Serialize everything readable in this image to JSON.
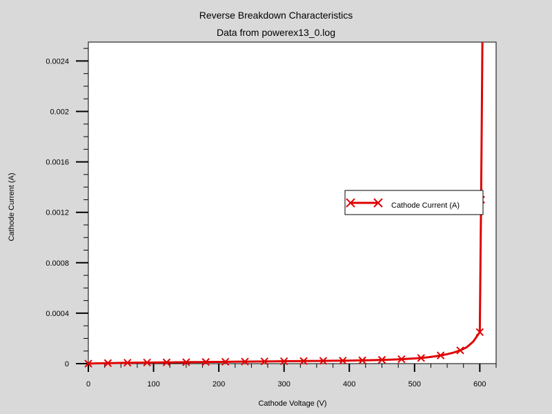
{
  "chart_data": {
    "type": "line",
    "title": "Reverse Breakdown Characteristics",
    "subtitle": "Data from powerex13_0.log",
    "xlabel": "Cathode Voltage (V)",
    "ylabel": "Cathode Current (A)",
    "xlim": [
      0,
      625
    ],
    "ylim": [
      0,
      0.00255
    ],
    "x_ticks": [
      0,
      100,
      200,
      300,
      400,
      500,
      600
    ],
    "x_tick_labels": [
      "0",
      "100",
      "200",
      "300",
      "400",
      "500",
      "600"
    ],
    "y_ticks": [
      0,
      0.0004,
      0.0008,
      0.0012,
      0.0016,
      0.002,
      0.0024
    ],
    "y_tick_labels": [
      "0",
      "0.0004",
      "0.0008",
      "0.0012",
      "0.0016",
      "0.002",
      "0.0024"
    ],
    "grid": false,
    "legend_position": "right",
    "series": [
      {
        "name": "Cathode Current (A)",
        "color": "#e00000",
        "marker": "x",
        "x": [
          0,
          10,
          20,
          30,
          40,
          50,
          60,
          70,
          80,
          90,
          100,
          110,
          120,
          130,
          140,
          150,
          160,
          170,
          180,
          190,
          200,
          210,
          220,
          230,
          240,
          250,
          260,
          270,
          280,
          290,
          300,
          310,
          320,
          330,
          340,
          350,
          360,
          370,
          380,
          390,
          400,
          410,
          420,
          430,
          440,
          450,
          460,
          470,
          480,
          490,
          500,
          510,
          520,
          530,
          540,
          550,
          560,
          570,
          580,
          590,
          600,
          602,
          604
        ],
        "y": [
          0,
          2e-06,
          3e-06,
          4e-06,
          5e-06,
          6e-06,
          7e-06,
          7.5e-06,
          8e-06,
          8.5e-06,
          9e-06,
          9.5e-06,
          1e-05,
          1.05e-05,
          1.1e-05,
          1.15e-05,
          1.2e-05,
          1.25e-05,
          1.3e-05,
          1.35e-05,
          1.4e-05,
          1.45e-05,
          1.5e-05,
          1.55e-05,
          1.6e-05,
          1.65e-05,
          1.7e-05,
          1.75e-05,
          1.8e-05,
          1.85e-05,
          1.9e-05,
          1.95e-05,
          2e-05,
          2.05e-05,
          2.1e-05,
          2.15e-05,
          2.2e-05,
          2.25e-05,
          2.3e-05,
          2.35e-05,
          2.4e-05,
          2.5e-05,
          2.6e-05,
          2.7e-05,
          2.8e-05,
          3e-05,
          3.1e-05,
          3.3e-05,
          3.5e-05,
          3.8e-05,
          4.1e-05,
          4.5e-05,
          5e-05,
          5.7e-05,
          6.5e-05,
          7.5e-05,
          8.8e-05,
          0.000105,
          0.00013,
          0.000175,
          0.00025,
          0.0013,
          0.0026
        ],
        "marker_every": 3
      }
    ]
  }
}
